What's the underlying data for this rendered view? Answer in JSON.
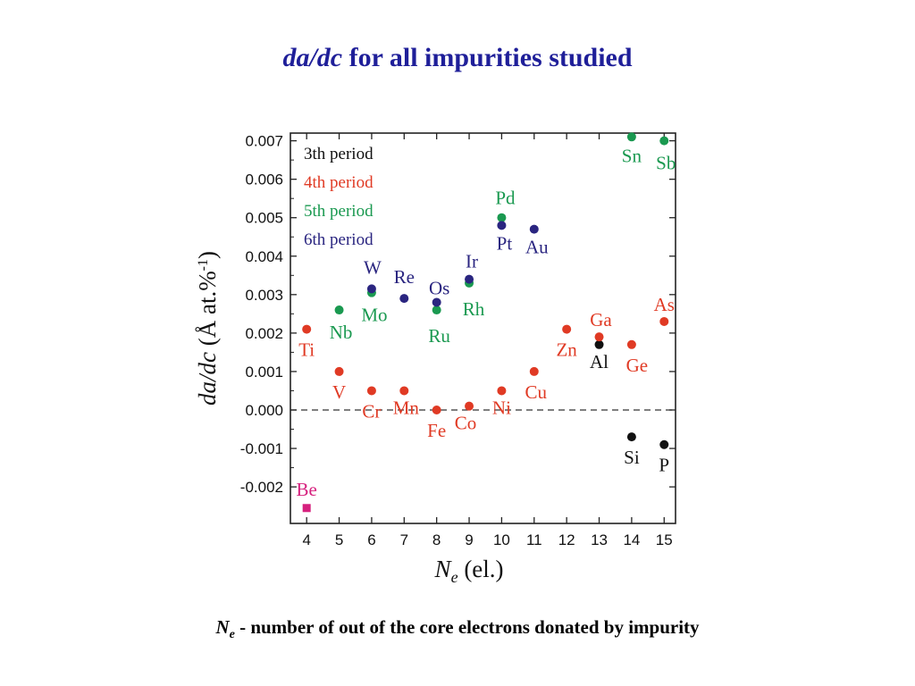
{
  "slide": {
    "title_italic": "da/dc",
    "title_rest": " for all impurities studied",
    "footnote_symbol": "N",
    "footnote_sub": "e",
    "footnote_text": " - number of out of the core electrons donated by impurity"
  },
  "colors": {
    "title": "#1f1f99",
    "3th period": "#111111",
    "4th period": "#e03a24",
    "5th period": "#1a9950",
    "6th period": "#2a2580",
    "Be": "#d6217e"
  },
  "chart_data": {
    "type": "scatter",
    "xlabel": {
      "symbol": "N",
      "sub": "e",
      "rest": " (el.)"
    },
    "ylabel": {
      "italic": "da/dc",
      "rest": " (Å at.%",
      "sup": "-1",
      "close": ")"
    },
    "xlim": [
      3.5,
      15.35
    ],
    "ylim": [
      -0.00295,
      0.0072
    ],
    "xticks": [
      4,
      5,
      6,
      7,
      8,
      9,
      10,
      11,
      12,
      13,
      14,
      15
    ],
    "yticks": [
      -0.002,
      -0.001,
      0.0,
      0.001,
      0.002,
      0.003,
      0.004,
      0.005,
      0.006,
      0.007
    ],
    "ytick_labels": [
      "-0.002",
      "-0.001",
      "0.000",
      "0.001",
      "0.002",
      "0.003",
      "0.004",
      "0.005",
      "0.006",
      "0.007"
    ],
    "reference_line": 0.0,
    "legend_position": "top-left",
    "series": [
      {
        "name": "3th period",
        "points": [
          {
            "label": "Al",
            "x": 13,
            "y": 0.0017
          },
          {
            "label": "Si",
            "x": 14,
            "y": -0.0007
          },
          {
            "label": "P",
            "x": 15,
            "y": -0.0009
          }
        ]
      },
      {
        "name": "4th period",
        "points": [
          {
            "label": "Ti",
            "x": 4,
            "y": 0.0021
          },
          {
            "label": "V",
            "x": 5,
            "y": 0.001
          },
          {
            "label": "Cr",
            "x": 6,
            "y": 0.0005
          },
          {
            "label": "Mn",
            "x": 7,
            "y": 0.0005
          },
          {
            "label": "Fe",
            "x": 8,
            "y": 0.0
          },
          {
            "label": "Co",
            "x": 9,
            "y": 0.0001
          },
          {
            "label": "Ni",
            "x": 10,
            "y": 0.0005
          },
          {
            "label": "Cu",
            "x": 11,
            "y": 0.001
          },
          {
            "label": "Zn",
            "x": 12,
            "y": 0.0021
          },
          {
            "label": "Ga",
            "x": 13,
            "y": 0.0019
          },
          {
            "label": "Ge",
            "x": 14,
            "y": 0.0017
          },
          {
            "label": "As",
            "x": 15,
            "y": 0.0023
          }
        ]
      },
      {
        "name": "5th period",
        "points": [
          {
            "label": "Nb",
            "x": 5,
            "y": 0.0026
          },
          {
            "label": "Mo",
            "x": 6,
            "y": 0.00305
          },
          {
            "label": "Ru",
            "x": 8,
            "y": 0.0026
          },
          {
            "label": "Rh",
            "x": 9,
            "y": 0.0033
          },
          {
            "label": "Pd",
            "x": 10,
            "y": 0.005
          },
          {
            "label": "Sn",
            "x": 14,
            "y": 0.0071
          },
          {
            "label": "Sb",
            "x": 15,
            "y": 0.007
          }
        ]
      },
      {
        "name": "6th period",
        "points": [
          {
            "label": "W",
            "x": 6,
            "y": 0.00315
          },
          {
            "label": "Re",
            "x": 7,
            "y": 0.0029
          },
          {
            "label": "Os",
            "x": 8,
            "y": 0.0028
          },
          {
            "label": "Ir",
            "x": 9,
            "y": 0.0034
          },
          {
            "label": "Pt",
            "x": 10,
            "y": 0.0048
          },
          {
            "label": "Au",
            "x": 11,
            "y": 0.0047
          }
        ]
      },
      {
        "name": "",
        "marker": "square",
        "points": [
          {
            "label": "Be",
            "x": 4,
            "y": -0.00255
          }
        ]
      }
    ]
  }
}
